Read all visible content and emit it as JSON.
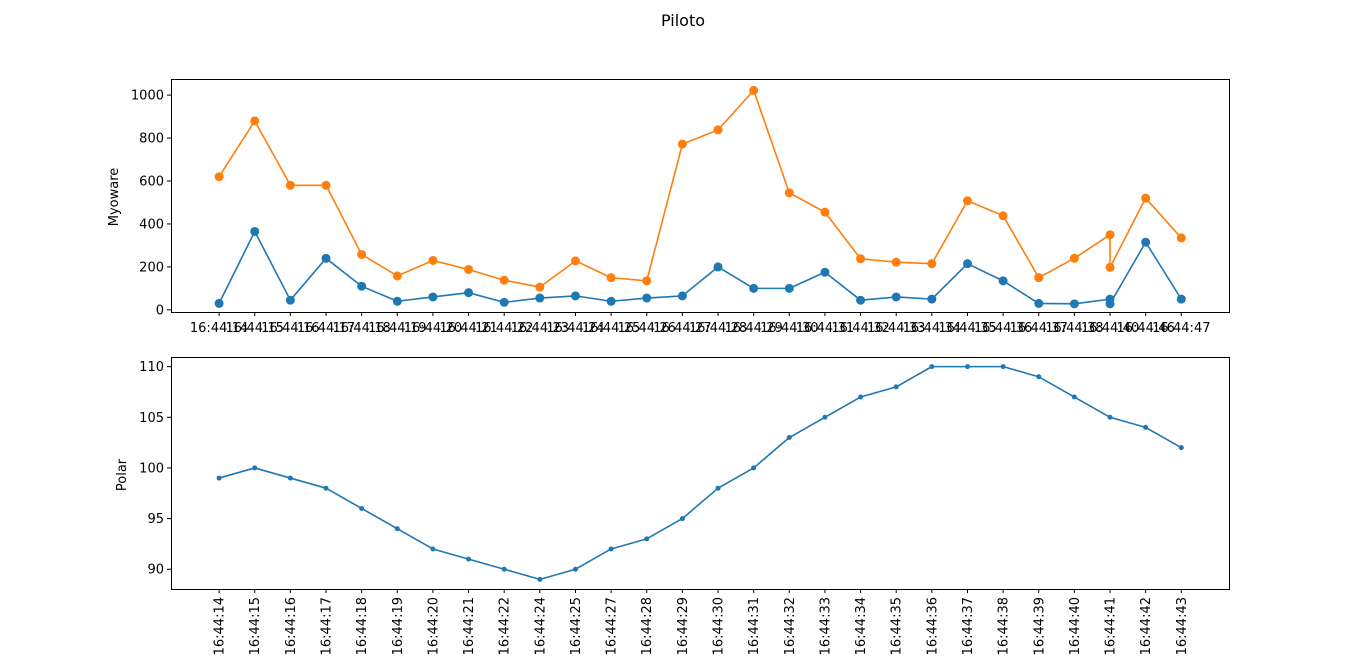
{
  "figure": {
    "title": "Piloto"
  },
  "chart_data": [
    {
      "type": "line",
      "ylabel": "Myoware",
      "xlabel": "",
      "ylim": [
        -10,
        1075
      ],
      "yticks": [
        0,
        200,
        400,
        600,
        800,
        1000
      ],
      "grid": false,
      "tick_rotation": 0,
      "x_tick_labels": [
        "16:44:14",
        "16:44:15",
        "16:44:16",
        "16:44:17",
        "16:44:18",
        "16:44:19",
        "16:44:20",
        "16:44:21",
        "16:44:22",
        "16:44:23",
        "16:44:24",
        "16:44:25",
        "16:44:26",
        "16:44:27",
        "16:44:28",
        "16:44:29",
        "16:44:30",
        "16:44:31",
        "16:44:32",
        "16:44:33",
        "16:44:34",
        "16:44:35",
        "16:44:36",
        "16:44:37",
        "16:44:38",
        "16:44:40",
        "16:44:46",
        "16:44:47"
      ],
      "x": [
        0,
        1,
        2,
        3,
        4,
        5,
        6,
        7,
        8,
        9,
        10,
        11,
        12,
        13,
        14,
        15,
        16,
        17,
        18,
        19,
        20,
        21,
        22,
        23,
        24,
        25,
        25,
        26,
        27
      ],
      "series": [
        {
          "color": "#1f77b4",
          "marker_size": 4.5,
          "values": [
            30,
            365,
            45,
            240,
            110,
            40,
            60,
            80,
            35,
            55,
            65,
            40,
            55,
            65,
            200,
            100,
            100,
            175,
            45,
            60,
            50,
            215,
            135,
            30,
            28,
            50,
            28,
            315,
            50
          ]
        },
        {
          "color": "#ff7f0e",
          "marker_size": 4.5,
          "values": [
            620,
            880,
            580,
            580,
            258,
            158,
            230,
            188,
            138,
            106,
            228,
            150,
            135,
            772,
            838,
            1022,
            545,
            455,
            238,
            222,
            215,
            508,
            438,
            150,
            240,
            350,
            198,
            520,
            335
          ]
        }
      ]
    },
    {
      "type": "line",
      "ylabel": "Polar",
      "xlabel": "",
      "ylim": [
        88.05,
        110.95
      ],
      "yticks": [
        90,
        95,
        100,
        105,
        110
      ],
      "grid": false,
      "tick_rotation": 90,
      "x_tick_labels": [
        "16:44:14",
        "16:44:15",
        "16:44:16",
        "16:44:17",
        "16:44:18",
        "16:44:19",
        "16:44:20",
        "16:44:21",
        "16:44:22",
        "16:44:24",
        "16:44:25",
        "16:44:27",
        "16:44:28",
        "16:44:29",
        "16:44:30",
        "16:44:31",
        "16:44:32",
        "16:44:33",
        "16:44:34",
        "16:44:35",
        "16:44:36",
        "16:44:37",
        "16:44:38",
        "16:44:39",
        "16:44:40",
        "16:44:41",
        "16:44:42",
        "16:44:43"
      ],
      "x": [
        0,
        1,
        2,
        3,
        4,
        5,
        6,
        7,
        8,
        9,
        10,
        11,
        12,
        13,
        14,
        15,
        16,
        17,
        18,
        19,
        20,
        21,
        22,
        23,
        24,
        25,
        26,
        27
      ],
      "series": [
        {
          "color": "#1f77b4",
          "marker_size": 2.5,
          "values": [
            99,
            100,
            99,
            98,
            96,
            94,
            92,
            91,
            90,
            89,
            90,
            92,
            93,
            95,
            98,
            100,
            103,
            105,
            107,
            108,
            110,
            110,
            110,
            109,
            107,
            105,
            104,
            102
          ]
        }
      ]
    }
  ]
}
